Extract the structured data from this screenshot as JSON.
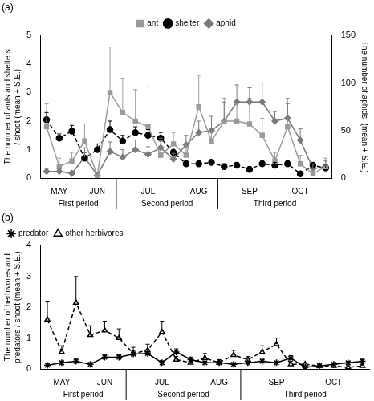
{
  "chart_data": [
    {
      "type": "line",
      "title": "(a)",
      "categories": [
        null,
        "MAY",
        null,
        null,
        "JUN",
        null,
        null,
        null,
        "JUL",
        null,
        null,
        null,
        "AUG",
        null,
        null,
        null,
        "SEP",
        null,
        null,
        null,
        "OCT",
        null,
        null
      ],
      "y_label": [
        "The number of ants and shelters",
        "/ shoot (mean + S.E.)"
      ],
      "y2_label": [
        "The number of aphids  (mean + S.E.)"
      ],
      "ylim": [
        0,
        5
      ],
      "yticks": [
        0,
        1,
        2,
        3,
        4,
        5
      ],
      "y2lim": [
        0,
        150
      ],
      "y2ticks": [
        0,
        50,
        100,
        150
      ],
      "grid": false,
      "legend": "top",
      "annotations": [
        {
          "text": "First period",
          "x_start": 0,
          "x_end": 5
        },
        {
          "text": "Second period",
          "x_start": 6,
          "x_end": 13
        },
        {
          "text": "Third period",
          "x_start": 14,
          "x_end": 22
        }
      ],
      "series": [
        {
          "name": "ant",
          "color": "#9a9a9a",
          "marker": "square",
          "line_style": "solid",
          "values": [
            1.8,
            0.4,
            0.6,
            1.3,
            0.1,
            3.0,
            2.3,
            2.0,
            1.8,
            0.8,
            1.2,
            0.8,
            2.5,
            1.3,
            2.0,
            2.0,
            1.9,
            1.5,
            0.6,
            1.8,
            0.5,
            0.15,
            0.4
          ],
          "errors": [
            0.8,
            0.3,
            0.3,
            0.6,
            0.1,
            1.6,
            1.2,
            1.1,
            1.4,
            0.5,
            0.4,
            0.4,
            1.1,
            0.6,
            0.8,
            0.6,
            0.9,
            0.6,
            0.3,
            1.0,
            0.3,
            0.1,
            0.3
          ]
        },
        {
          "name": "shelter",
          "color": "#000000",
          "marker": "circle",
          "line_style": "dashed",
          "values": [
            2.05,
            1.4,
            1.65,
            0.7,
            1.0,
            1.7,
            1.3,
            1.6,
            1.5,
            1.4,
            0.9,
            0.5,
            0.5,
            0.55,
            0.4,
            0.45,
            0.3,
            0.5,
            0.45,
            0.5,
            0.15,
            0.45,
            0.35
          ],
          "errors": [
            0.25,
            0.15,
            0.2,
            0.2,
            0.2,
            0.3,
            0.2,
            0.2,
            0.2,
            0.2,
            0.15,
            0.1,
            0.1,
            0.1,
            0.1,
            0.1,
            0.1,
            0.1,
            0.1,
            0.1,
            0.05,
            0.1,
            0.1
          ]
        },
        {
          "name": "aphid",
          "color": "#7a7a7a",
          "marker": "diamond",
          "line_style": "solid",
          "axis": "y2",
          "values": [
            7,
            7,
            5,
            22,
            3,
            28,
            22,
            30,
            25,
            32,
            20,
            35,
            48,
            50,
            60,
            80,
            80,
            80,
            60,
            63,
            40,
            10,
            12
          ],
          "errors": [
            3,
            3,
            2,
            10,
            2,
            10,
            8,
            10,
            8,
            10,
            6,
            10,
            12,
            15,
            20,
            18,
            15,
            20,
            10,
            15,
            12,
            5,
            6
          ]
        }
      ]
    },
    {
      "type": "line",
      "title": "(b)",
      "categories": [
        null,
        "MAY",
        null,
        null,
        "JUN",
        null,
        null,
        null,
        "JUL",
        null,
        null,
        null,
        "AUG",
        null,
        null,
        null,
        "SEP",
        null,
        null,
        null,
        "OCT",
        null,
        null
      ],
      "y_label": [
        "The number of herbivores and",
        "predators / shoot (mean + S.E.)"
      ],
      "ylim": [
        0,
        4
      ],
      "yticks": [
        0,
        1,
        2,
        3,
        4
      ],
      "grid": false,
      "legend": "top left",
      "annotations": [
        {
          "text": "First period",
          "x_start": 0,
          "x_end": 5
        },
        {
          "text": "Second period",
          "x_start": 6,
          "x_end": 13
        },
        {
          "text": "Third period",
          "x_start": 14,
          "x_end": 22
        }
      ],
      "series": [
        {
          "name": "predator",
          "color": "#000000",
          "marker": "asterisk",
          "line_style": "solid",
          "values": [
            0.12,
            0.2,
            0.25,
            0.15,
            0.38,
            0.38,
            0.48,
            0.5,
            0.2,
            0.55,
            0.3,
            0.2,
            0.2,
            0.15,
            0.2,
            0.25,
            0.2,
            0.35,
            0.05,
            0.1,
            0.15,
            0.2,
            0.25
          ],
          "errors": [
            0.05,
            0.05,
            0.06,
            0.05,
            0.08,
            0.08,
            0.1,
            0.12,
            0.06,
            0.1,
            0.08,
            0.05,
            0.06,
            0.05,
            0.05,
            0.06,
            0.05,
            0.08,
            0.03,
            0.04,
            0.05,
            0.05,
            0.06
          ]
        },
        {
          "name": "other herbivores",
          "color": "#000000",
          "marker": "triangle",
          "line_style": "dashed",
          "values": [
            1.6,
            0.55,
            2.15,
            1.1,
            1.25,
            1.0,
            0.5,
            0.6,
            1.2,
            0.3,
            0.2,
            0.35,
            0.2,
            0.45,
            0.3,
            0.55,
            0.8,
            0.15,
            0.15,
            0.1,
            0.1,
            0.05,
            0.1
          ],
          "errors": [
            0.6,
            0.2,
            0.85,
            0.3,
            0.3,
            0.3,
            0.2,
            0.2,
            0.35,
            0.1,
            0.1,
            0.15,
            0.1,
            0.15,
            0.1,
            0.2,
            0.2,
            0.1,
            0.05,
            0.05,
            0.05,
            0.05,
            0.05
          ]
        }
      ]
    }
  ]
}
